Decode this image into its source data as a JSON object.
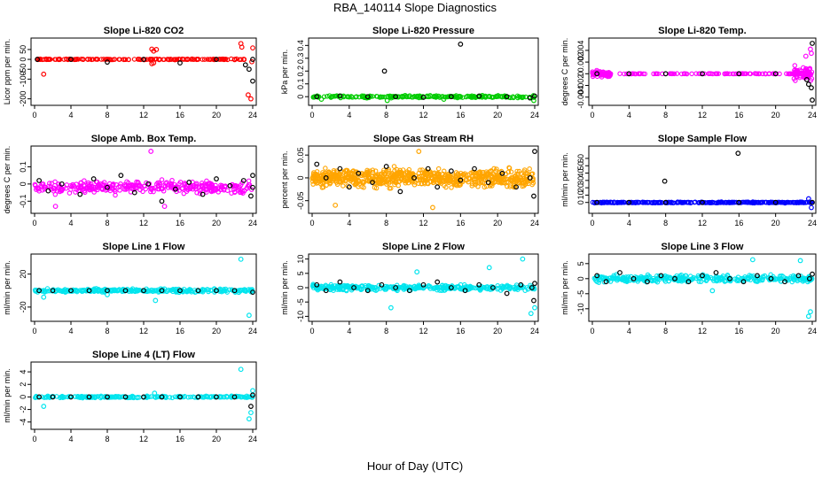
{
  "figure": {
    "title": "RBA_140114  Slope Diagnostics",
    "xlabel": "Hour of Day (UTC)"
  },
  "colors": {
    "black": "#000000",
    "red": "#ff0000",
    "green": "#00cc00",
    "magenta": "#ff00ff",
    "orange": "#ffa500",
    "blue": "#0000ff",
    "cyan": "#00e5ee"
  },
  "chart_data": [
    {
      "type": "scatter",
      "title": "Slope Li-820 CO2",
      "ylabel": "Licor ppm per min.",
      "xlim": [
        0,
        24
      ],
      "ylim": [
        -215,
        90
      ],
      "xticks": [
        0,
        4,
        8,
        12,
        16,
        20,
        24
      ],
      "yticks": [
        50,
        0,
        -50,
        -100,
        -200
      ],
      "color": "red",
      "bands": [
        {
          "from": 0,
          "to": 24,
          "center": 0,
          "spread": 3,
          "n": 160
        }
      ],
      "points": [
        [
          1.0,
          -75
        ],
        [
          12.9,
          52
        ],
        [
          13.1,
          42
        ],
        [
          13.4,
          50
        ],
        [
          12.9,
          -22
        ],
        [
          13.1,
          -18
        ],
        [
          22.7,
          80
        ],
        [
          22.8,
          62
        ],
        [
          23.0,
          0
        ],
        [
          23.5,
          -180
        ],
        [
          23.8,
          -200
        ],
        [
          24.0,
          58
        ],
        [
          23.9,
          -12
        ]
      ],
      "black_points": [
        [
          0.3,
          0
        ],
        [
          4,
          0
        ],
        [
          8,
          -14
        ],
        [
          12,
          0
        ],
        [
          16,
          -18
        ],
        [
          20,
          0
        ],
        [
          23.2,
          -28
        ],
        [
          23.6,
          -50
        ],
        [
          24.0,
          -110
        ],
        [
          24.0,
          0
        ]
      ]
    },
    {
      "type": "scatter",
      "title": "Slope Li-820 Pressure",
      "ylabel": "kPa per min.",
      "xlim": [
        0,
        24
      ],
      "ylim": [
        -0.04,
        0.43
      ],
      "xticks": [
        0,
        4,
        8,
        12,
        16,
        20,
        24
      ],
      "yticks": [
        0.0,
        0.1,
        0.2,
        0.3,
        0.4
      ],
      "color": "green",
      "bands": [
        {
          "from": 0,
          "to": 24,
          "center": 0.0,
          "spread": 0.012,
          "n": 200
        }
      ],
      "points": [
        [
          23.9,
          -0.03
        ],
        [
          8.1,
          -0.03
        ],
        [
          1.0,
          -0.02
        ],
        [
          14.2,
          -0.02
        ]
      ],
      "black_points": [
        [
          7.8,
          0.2
        ],
        [
          16.0,
          0.41
        ],
        [
          0.5,
          0
        ],
        [
          3,
          0.005
        ],
        [
          6,
          0
        ],
        [
          9,
          0
        ],
        [
          12,
          -0.005
        ],
        [
          15,
          0
        ],
        [
          18,
          0.005
        ],
        [
          21,
          0
        ],
        [
          23.5,
          -0.01
        ],
        [
          24.0,
          0.005
        ]
      ]
    },
    {
      "type": "scatter",
      "title": "Slope Li-820 Temp.",
      "ylabel": "degrees C per min.",
      "xlim": [
        0,
        24
      ],
      "ylim": [
        -0.0048,
        0.0055
      ],
      "xticks": [
        0,
        4,
        8,
        12,
        16,
        20,
        24
      ],
      "yticks": [
        0.004,
        0.002,
        0.0,
        -0.002,
        -0.004
      ],
      "color": "magenta",
      "bands": [
        {
          "from": 0,
          "to": 24,
          "center": 0.0,
          "spread": 5e-05,
          "n": 120
        },
        {
          "from": 0,
          "to": 2,
          "center": 0.0,
          "spread": 0.0007,
          "n": 60
        },
        {
          "from": 22,
          "to": 24,
          "center": 0.0,
          "spread": 0.0018,
          "n": 70
        }
      ],
      "points": [
        [
          23.8,
          0.0042
        ],
        [
          23.9,
          0.0035
        ],
        [
          23.3,
          0.003
        ]
      ],
      "black_points": [
        [
          23.6,
          -0.0018
        ],
        [
          23.9,
          -0.0024
        ],
        [
          24.0,
          -0.0045
        ],
        [
          24.0,
          0.0052
        ],
        [
          23.4,
          -0.001
        ],
        [
          0.5,
          0
        ],
        [
          4,
          0
        ],
        [
          8,
          0
        ],
        [
          12,
          0
        ],
        [
          16,
          0
        ],
        [
          20,
          0
        ]
      ]
    },
    {
      "type": "scatter",
      "title": "Slope Amb. Box Temp.",
      "ylabel": "degrees C per min.",
      "xlim": [
        0,
        24
      ],
      "ylim": [
        -0.15,
        0.2
      ],
      "xticks": [
        0,
        4,
        8,
        12,
        16,
        20,
        24
      ],
      "yticks": [
        0.1,
        0.0,
        -0.1
      ],
      "color": "magenta",
      "bands": [
        {
          "from": 0,
          "to": 24,
          "center": -0.02,
          "spread": 0.05,
          "n": 320
        }
      ],
      "points": [
        [
          12.8,
          0.19
        ],
        [
          2.3,
          -0.13
        ],
        [
          14.3,
          -0.13
        ]
      ],
      "black_points": [
        [
          0.5,
          0.02
        ],
        [
          1.5,
          -0.04
        ],
        [
          3,
          0.0
        ],
        [
          5,
          -0.06
        ],
        [
          6.5,
          0.03
        ],
        [
          8,
          -0.02
        ],
        [
          9.5,
          0.05
        ],
        [
          11,
          -0.05
        ],
        [
          12.5,
          0.0
        ],
        [
          14,
          -0.1
        ],
        [
          15.5,
          -0.03
        ],
        [
          17,
          0.01
        ],
        [
          18.5,
          -0.06
        ],
        [
          20,
          0.03
        ],
        [
          21.5,
          -0.01
        ],
        [
          23,
          0.02
        ],
        [
          23.8,
          -0.07
        ],
        [
          24.0,
          0.05
        ],
        [
          24.0,
          -0.02
        ]
      ]
    },
    {
      "type": "scatter",
      "title": "Slope Gas Stream RH",
      "ylabel": "percent per min.",
      "xlim": [
        0,
        24
      ],
      "ylim": [
        -0.07,
        0.062
      ],
      "xticks": [
        0,
        4,
        8,
        12,
        16,
        20,
        24
      ],
      "yticks": [
        0.05,
        0.0,
        -0.05
      ],
      "color": "orange",
      "bands": [
        {
          "from": 0,
          "to": 24,
          "center": 0.0,
          "spread": 0.028,
          "n": 700
        }
      ],
      "points": [
        [
          11.5,
          0.058
        ],
        [
          2.5,
          -0.06
        ],
        [
          13.0,
          -0.065
        ]
      ],
      "black_points": [
        [
          0.5,
          0.03
        ],
        [
          1.5,
          0.0
        ],
        [
          3,
          0.02
        ],
        [
          4,
          -0.02
        ],
        [
          5,
          0.01
        ],
        [
          6.5,
          -0.01
        ],
        [
          8,
          0.025
        ],
        [
          9.5,
          -0.03
        ],
        [
          11,
          0.0
        ],
        [
          12.5,
          0.02
        ],
        [
          13.5,
          -0.02
        ],
        [
          15,
          0.015
        ],
        [
          16,
          -0.005
        ],
        [
          17.5,
          0.02
        ],
        [
          19,
          -0.01
        ],
        [
          20.5,
          0.01
        ],
        [
          22,
          -0.02
        ],
        [
          23.5,
          0.0
        ],
        [
          24.0,
          0.058
        ],
        [
          23.9,
          -0.04
        ]
      ]
    },
    {
      "type": "scatter",
      "title": "Slope Sample Flow",
      "ylabel": "ml/min per min.",
      "xlim": [
        0,
        24
      ],
      "ylim": [
        -10,
        72
      ],
      "xticks": [
        0,
        4,
        8,
        12,
        16,
        20,
        24
      ],
      "yticks": [
        60,
        50,
        40,
        30,
        20,
        10,
        0
      ],
      "color": "blue",
      "bands": [
        {
          "from": 0,
          "to": 24,
          "center": 0,
          "spread": 1.0,
          "n": 300
        }
      ],
      "points": [
        [
          23.6,
          5
        ],
        [
          23.9,
          -7
        ]
      ],
      "black_points": [
        [
          7.9,
          29
        ],
        [
          15.9,
          67
        ],
        [
          0.5,
          0
        ],
        [
          4,
          0
        ],
        [
          8,
          0
        ],
        [
          12,
          0
        ],
        [
          16,
          0
        ],
        [
          20,
          0
        ],
        [
          24.0,
          0
        ]
      ]
    },
    {
      "type": "scatter",
      "title": "Slope Line 1 Flow",
      "ylabel": "ml/min per min.",
      "xlim": [
        0,
        24
      ],
      "ylim": [
        -33,
        40
      ],
      "xticks": [
        0,
        4,
        8,
        12,
        16,
        20,
        24
      ],
      "yticks": [
        20,
        -20
      ],
      "color": "cyan",
      "bands": [
        {
          "from": 0,
          "to": 24,
          "center": 0,
          "spread": 3,
          "n": 280
        }
      ],
      "points": [
        [
          22.7,
          38
        ],
        [
          23.6,
          -30
        ],
        [
          1.0,
          -8
        ],
        [
          8.0,
          -5
        ],
        [
          13.3,
          -12
        ]
      ],
      "black_points": [
        [
          0.5,
          0
        ],
        [
          2,
          0
        ],
        [
          4,
          0
        ],
        [
          6,
          0
        ],
        [
          8,
          0
        ],
        [
          10,
          0
        ],
        [
          12,
          0
        ],
        [
          14,
          0
        ],
        [
          16,
          0
        ],
        [
          18,
          0
        ],
        [
          20,
          0
        ],
        [
          22,
          0
        ],
        [
          24.0,
          -2
        ]
      ]
    },
    {
      "type": "scatter",
      "title": "Slope Line 2 Flow",
      "ylabel": "ml/min per min.",
      "xlim": [
        0,
        24
      ],
      "ylim": [
        -10.5,
        10.5
      ],
      "xticks": [
        0,
        4,
        8,
        12,
        16,
        20,
        24
      ],
      "yticks": [
        10,
        5,
        0,
        -5,
        -10
      ],
      "color": "cyan",
      "bands": [
        {
          "from": 0,
          "to": 24,
          "center": 0,
          "spread": 1.5,
          "n": 320
        }
      ],
      "points": [
        [
          22.7,
          10
        ],
        [
          23.6,
          -9
        ],
        [
          8.5,
          -7
        ],
        [
          11.3,
          5.5
        ],
        [
          19.1,
          7
        ],
        [
          24.0,
          -7
        ]
      ],
      "black_points": [
        [
          0.5,
          1
        ],
        [
          1.5,
          -1
        ],
        [
          3,
          2
        ],
        [
          4.5,
          0
        ],
        [
          6,
          -1
        ],
        [
          7.5,
          1
        ],
        [
          9,
          0
        ],
        [
          10.5,
          -1
        ],
        [
          12,
          1
        ],
        [
          13.5,
          2
        ],
        [
          15,
          0
        ],
        [
          16.5,
          -1
        ],
        [
          18,
          1
        ],
        [
          19.5,
          0
        ],
        [
          21,
          -2
        ],
        [
          22.5,
          1
        ],
        [
          23.7,
          0
        ],
        [
          23.9,
          -4.5
        ],
        [
          24.0,
          1.5
        ]
      ]
    },
    {
      "type": "scatter",
      "title": "Slope Line 3 Flow",
      "ylabel": "ml/min per min.",
      "xlim": [
        0,
        24
      ],
      "ylim": [
        -13,
        7
      ],
      "xticks": [
        0,
        4,
        8,
        12,
        16,
        20,
        24
      ],
      "yticks": [
        5,
        0,
        -5,
        -10
      ],
      "color": "cyan",
      "bands": [
        {
          "from": 0,
          "to": 24,
          "center": 0,
          "spread": 1.6,
          "n": 330
        }
      ],
      "points": [
        [
          22.7,
          6
        ],
        [
          23.6,
          -12.5
        ],
        [
          23.8,
          -11
        ],
        [
          13.1,
          -4
        ],
        [
          17.5,
          6.3
        ]
      ],
      "black_points": [
        [
          0.5,
          1
        ],
        [
          1.5,
          -1
        ],
        [
          3,
          2
        ],
        [
          4.5,
          0
        ],
        [
          6,
          -1
        ],
        [
          7.5,
          1
        ],
        [
          9,
          0
        ],
        [
          10.5,
          -1
        ],
        [
          12,
          1
        ],
        [
          13.5,
          2
        ],
        [
          15,
          0
        ],
        [
          16.5,
          -1
        ],
        [
          18,
          1
        ],
        [
          19.5,
          0
        ],
        [
          21,
          -1
        ],
        [
          22.5,
          1
        ],
        [
          23.7,
          0
        ],
        [
          24.0,
          1.5
        ]
      ]
    },
    {
      "type": "scatter",
      "title": "Slope Line 4 (LT) Flow",
      "ylabel": "ml/min per min.",
      "xlim": [
        0,
        24
      ],
      "ylim": [
        -4.6,
        5
      ],
      "xticks": [
        0,
        4,
        8,
        12,
        16,
        20,
        24
      ],
      "yticks": [
        4,
        2,
        0,
        -2,
        -4
      ],
      "color": "cyan",
      "bands": [
        {
          "from": 0,
          "to": 24,
          "center": 0,
          "spread": 0.2,
          "n": 220
        }
      ],
      "points": [
        [
          22.7,
          4.4
        ],
        [
          23.6,
          -3.5
        ],
        [
          23.8,
          -2.5
        ],
        [
          24.0,
          1.0
        ],
        [
          1.0,
          -1.5
        ],
        [
          13.2,
          0.6
        ]
      ],
      "black_points": [
        [
          0.5,
          0
        ],
        [
          2,
          0
        ],
        [
          4,
          0
        ],
        [
          6,
          0
        ],
        [
          8,
          0
        ],
        [
          10,
          0
        ],
        [
          12,
          0
        ],
        [
          14,
          0
        ],
        [
          16,
          0
        ],
        [
          18,
          0
        ],
        [
          20,
          0
        ],
        [
          22,
          0
        ],
        [
          23.8,
          -1.5
        ],
        [
          24.0,
          0.3
        ]
      ]
    }
  ]
}
